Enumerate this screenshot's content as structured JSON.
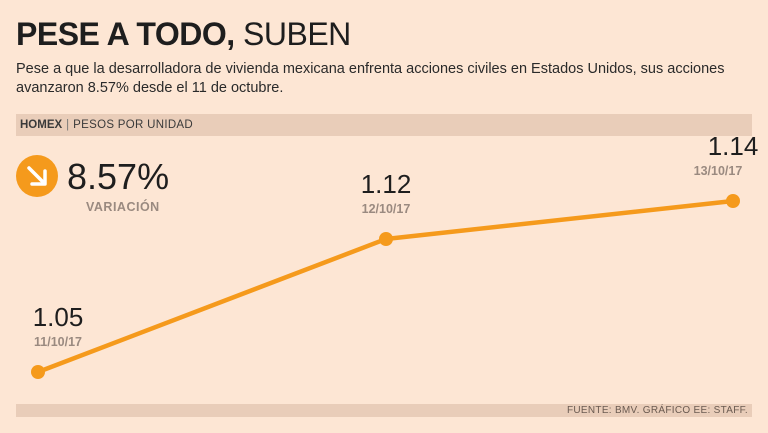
{
  "header": {
    "title_bold": "PESE A TODO,",
    "title_light": "SUBEN",
    "subtitle": "Pese a que la desarrolladora de vivienda mexicana enfrenta acciones civiles en Estados Unidos, sus acciones avanzaron 8.57% desde el 11 de octubre."
  },
  "label_bar": {
    "ticker": "HOMEX",
    "separator": "|",
    "unit": "PESOS POR UNIDAD"
  },
  "variation": {
    "value": "8.57%",
    "label": "VARIACIÓN",
    "icon": "arrow-down-right-icon"
  },
  "footer": {
    "source": "FUENTE: BMV. GRÁFICO EE: STAFF."
  },
  "colors": {
    "background": "#fde6d4",
    "accent": "#f59a1c",
    "bar": "#e9cdb9",
    "date_label": "#9a8a80"
  },
  "chart_data": {
    "type": "line",
    "x": [
      "11/10/17",
      "12/10/17",
      "13/10/17"
    ],
    "series": [
      {
        "values": [
          1.05,
          1.12,
          1.14
        ]
      }
    ],
    "value_labels": [
      "1.05",
      "1.12",
      "1.14"
    ],
    "ylim": [
      1.04,
      1.14
    ],
    "grid": false,
    "legend": "none"
  }
}
